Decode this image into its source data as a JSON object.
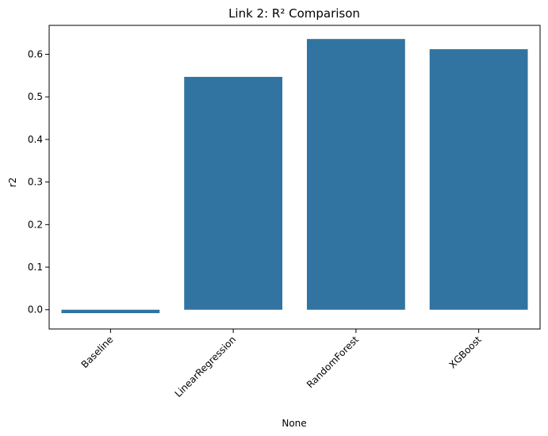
{
  "chart_data": {
    "type": "bar",
    "title": "Link 2: R² Comparison",
    "xlabel": "None",
    "ylabel": "r2",
    "categories": [
      "Baseline",
      "LinearRegression",
      "RandomForest",
      "XGBoost"
    ],
    "values": [
      -0.008,
      0.547,
      0.636,
      0.612
    ],
    "ylim": [
      -0.0452,
      0.668
    ],
    "yticks": [
      0.0,
      0.1,
      0.2,
      0.3,
      0.4,
      0.5,
      0.6
    ],
    "ytick_labels": [
      "0.0",
      "0.1",
      "0.2",
      "0.3",
      "0.4",
      "0.5",
      "0.6"
    ],
    "xtick_rotation": "45 degrees",
    "bar_color": "#3274a1",
    "grid": false,
    "legend": "none"
  }
}
